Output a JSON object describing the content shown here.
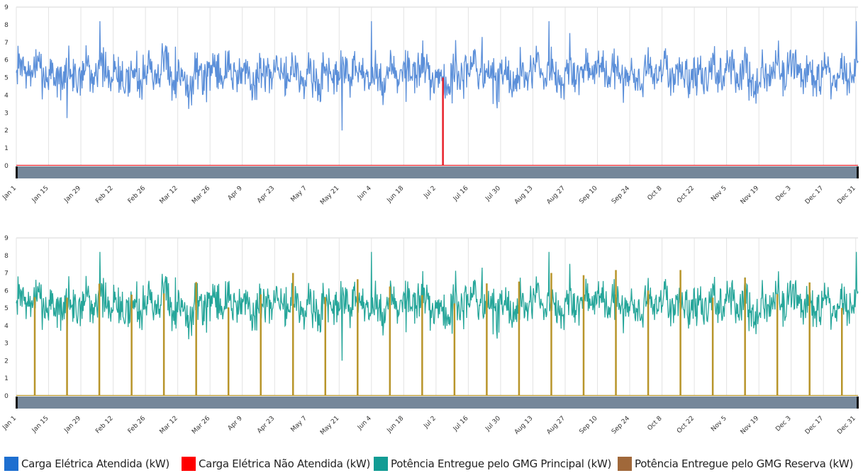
{
  "chart_data": [
    {
      "type": "line",
      "panel": "top",
      "ylim": [
        0,
        9
      ],
      "y_ticks": [
        "0",
        "1",
        "2",
        "3",
        "4",
        "5",
        "6",
        "7",
        "8",
        "9"
      ],
      "x_ticks": [
        "Jan 1",
        "Jan 15",
        "Jan 29",
        "Feb 12",
        "Feb 26",
        "Mar 12",
        "Mar 26",
        "Apr 9",
        "Apr 23",
        "May 7",
        "May 21",
        "Jun 4",
        "Jun 18",
        "Jul 2",
        "Jul 16",
        "Jul 30",
        "Aug 13",
        "Aug 27",
        "Sep 10",
        "Sep 24",
        "Oct 8",
        "Oct 22",
        "Nov 5",
        "Nov 19",
        "Dec 3",
        "Dec 17",
        "Dec 31"
      ],
      "grid": true,
      "series": [
        {
          "name": "Carga Elétrica Atendida (kW)",
          "color": "#5b8fd9",
          "typical_range": [
            3.5,
            7
          ],
          "min": 2.0,
          "max": 8.2,
          "mean": 5.2
        },
        {
          "name": "Carga Elétrica Não Atendida (kW)",
          "color": "#e8202a",
          "baseline": 0,
          "spikes": [
            {
              "x": "Jul 5",
              "y": 5
            }
          ]
        }
      ]
    },
    {
      "type": "line",
      "panel": "bottom",
      "ylim": [
        0,
        9
      ],
      "y_ticks": [
        "0",
        "1",
        "2",
        "3",
        "4",
        "5",
        "6",
        "7",
        "8",
        "9"
      ],
      "x_ticks": [
        "Jan 1",
        "Jan 15",
        "Jan 29",
        "Feb 12",
        "Feb 26",
        "Mar 12",
        "Mar 26",
        "Apr 9",
        "Apr 23",
        "May 7",
        "May 21",
        "Jun 4",
        "Jun 18",
        "Jul 2",
        "Jul 16",
        "Jul 30",
        "Aug 13",
        "Aug 27",
        "Sep 10",
        "Sep 24",
        "Oct 8",
        "Oct 22",
        "Nov 5",
        "Nov 19",
        "Dec 3",
        "Dec 17",
        "Dec 31"
      ],
      "grid": true,
      "series": [
        {
          "name": "Potência Entregue pelo GMG Principal (kW)",
          "color": "#26a69a",
          "typical_range": [
            3.5,
            7
          ],
          "min": 2.0,
          "max": 8.2,
          "mean": 5.2
        },
        {
          "name": "Potência Entregue pelo GMG Reserva (kW)",
          "color": "#b8952a",
          "baseline": 0,
          "spike_interval_days": 14,
          "spike_range": [
            5,
            7.3
          ]
        }
      ]
    }
  ],
  "legend": [
    {
      "label": "Carga Elétrica Atendida (kW)",
      "color": "#1e6fd0"
    },
    {
      "label": "Carga Elétrica Não Atendida (kW)",
      "color": "#ff0000"
    },
    {
      "label": "Potência Entregue pelo GMG Principal (kW)",
      "color": "#129c94"
    },
    {
      "label": "Potência Entregue pelo GMG Reserva (kW)",
      "color": "#a0683a"
    }
  ],
  "colors": {
    "navigator": "#75879a",
    "navigator_handle": "#111111",
    "grid": "#e3e3e3"
  }
}
